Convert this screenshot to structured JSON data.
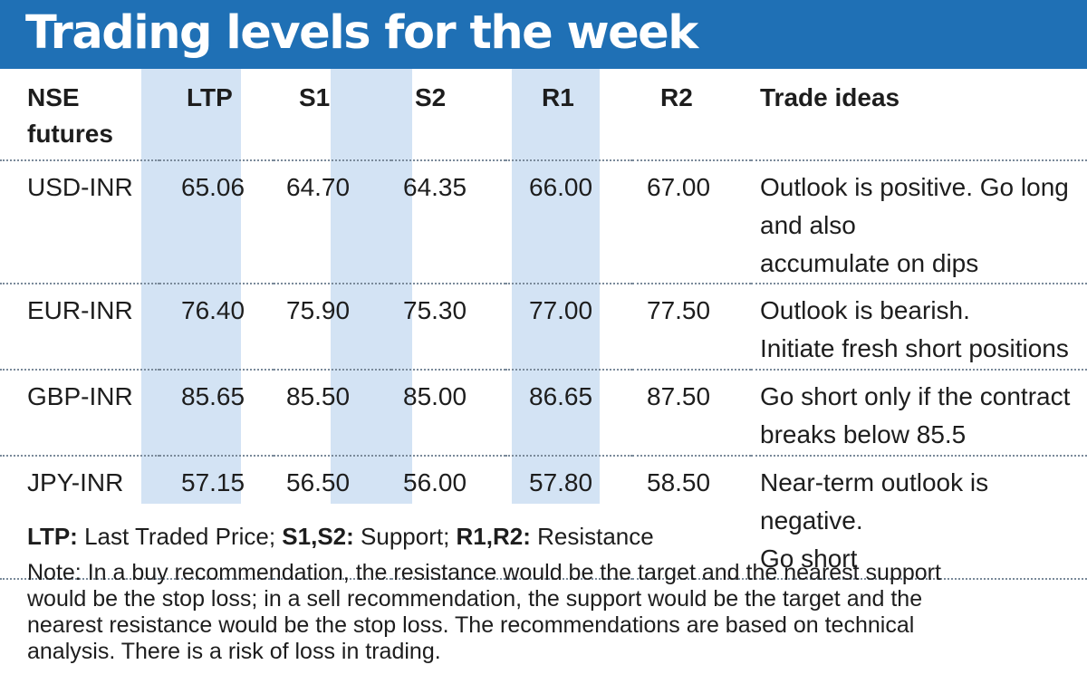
{
  "title": "Trading levels for the week",
  "table": {
    "headers": [
      "NSE futures",
      "LTP",
      "S1",
      "S2",
      "R1",
      "R2",
      "Trade ideas"
    ],
    "rows": [
      {
        "pair": "USD-INR",
        "ltp": "65.06",
        "s1": "64.70",
        "s2": "64.35",
        "r1": "66.00",
        "r2": "67.00",
        "idea_line1": "Outlook is positive. Go long and also",
        "idea_line2": "accumulate on dips"
      },
      {
        "pair": "EUR-INR",
        "ltp": "76.40",
        "s1": "75.90",
        "s2": "75.30",
        "r1": "77.00",
        "r2": "77.50",
        "idea_line1": "Outlook is bearish.",
        "idea_line2": "Initiate fresh short positions"
      },
      {
        "pair": "GBP-INR",
        "ltp": "85.65",
        "s1": "85.50",
        "s2": "85.00",
        "r1": "86.65",
        "r2": "87.50",
        "idea_line1": "Go short only if the contract",
        "idea_line2": "breaks below 85.5"
      },
      {
        "pair": "JPY-INR",
        "ltp": "57.15",
        "s1": "56.50",
        "s2": "56.00",
        "r1": "57.80",
        "r2": "58.50",
        "idea_line1": "Near-term outlook is negative.",
        "idea_line2": "Go short"
      }
    ]
  },
  "legend": {
    "ltp_key": "LTP:",
    "ltp_value": " Last Traded Price; ",
    "s_key": "S1,S2:",
    "s_value": " Support; ",
    "r_key": "R1,R2:",
    "r_value": " Resistance"
  },
  "note_lines": [
    "Note: In a buy recommendation, the resistance would be the target and the nearest support",
    "would be the stop loss; in a sell recommendation, the support would be the target and the",
    "nearest resistance would be the stop loss. The recommendations are based on technical",
    "analysis. There is a risk of loss in trading."
  ],
  "colors": {
    "title_bar": "#1f70b5",
    "column_shade": "#d3e3f4"
  }
}
